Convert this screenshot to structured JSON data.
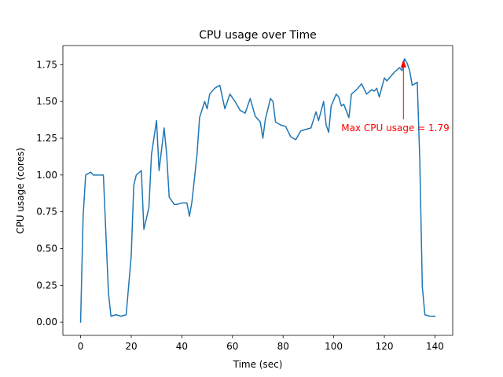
{
  "chart_data": {
    "type": "line",
    "title": "CPU usage over Time",
    "xlabel": "Time (sec)",
    "ylabel": "CPU usage (cores)",
    "xlim": [
      -7,
      147
    ],
    "ylim": [
      -0.09,
      1.88
    ],
    "xticks": [
      0,
      20,
      40,
      60,
      80,
      100,
      120,
      140
    ],
    "xtick_labels": [
      "0",
      "20",
      "40",
      "60",
      "80",
      "100",
      "120",
      "140"
    ],
    "yticks": [
      0.0,
      0.25,
      0.5,
      0.75,
      1.0,
      1.25,
      1.5,
      1.75
    ],
    "ytick_labels": [
      "0.00",
      "0.25",
      "0.50",
      "0.75",
      "1.00",
      "1.25",
      "1.50",
      "1.75"
    ],
    "grid": false,
    "line_color": "#1f77b4",
    "series": [
      {
        "x": [
          0,
          1,
          2,
          4,
          5,
          7,
          9,
          11,
          12,
          14,
          16,
          18,
          20,
          21,
          22,
          24,
          25,
          27,
          28,
          30,
          31,
          33,
          34,
          35,
          37,
          38,
          40,
          42,
          43,
          44,
          46,
          47,
          49,
          50,
          51,
          53,
          55,
          57,
          59,
          61,
          63,
          65,
          67,
          69,
          71,
          72,
          73,
          75,
          76,
          77,
          79,
          81,
          83,
          85,
          87,
          89,
          91,
          93,
          94,
          96,
          97,
          98,
          99,
          101,
          102,
          103,
          104,
          106,
          107,
          109,
          111,
          113,
          115,
          116,
          117,
          118,
          120,
          121,
          122,
          124,
          126,
          127,
          128,
          129,
          130,
          131,
          132,
          133,
          134,
          135,
          136,
          138,
          140
        ],
        "y": [
          0.0,
          0.72,
          1.0,
          1.02,
          1.0,
          1.0,
          1.0,
          0.2,
          0.04,
          0.05,
          0.04,
          0.05,
          0.45,
          0.93,
          1.0,
          1.03,
          0.63,
          0.78,
          1.14,
          1.37,
          1.03,
          1.32,
          1.14,
          0.85,
          0.8,
          0.8,
          0.81,
          0.81,
          0.72,
          0.82,
          1.14,
          1.39,
          1.5,
          1.45,
          1.55,
          1.59,
          1.61,
          1.45,
          1.55,
          1.5,
          1.44,
          1.42,
          1.52,
          1.4,
          1.36,
          1.25,
          1.38,
          1.52,
          1.5,
          1.36,
          1.34,
          1.33,
          1.26,
          1.24,
          1.3,
          1.31,
          1.32,
          1.43,
          1.37,
          1.5,
          1.34,
          1.29,
          1.47,
          1.55,
          1.53,
          1.47,
          1.48,
          1.39,
          1.55,
          1.58,
          1.62,
          1.55,
          1.58,
          1.57,
          1.59,
          1.53,
          1.66,
          1.64,
          1.66,
          1.7,
          1.73,
          1.71,
          1.79,
          1.76,
          1.71,
          1.61,
          1.62,
          1.63,
          1.1,
          0.24,
          0.05,
          0.04,
          0.04
        ]
      }
    ],
    "annotation": {
      "text": "Max CPU usage = 1.79",
      "color": "#ff0000",
      "xy": [
        128,
        1.79
      ],
      "xytext": [
        103,
        1.3
      ]
    }
  }
}
